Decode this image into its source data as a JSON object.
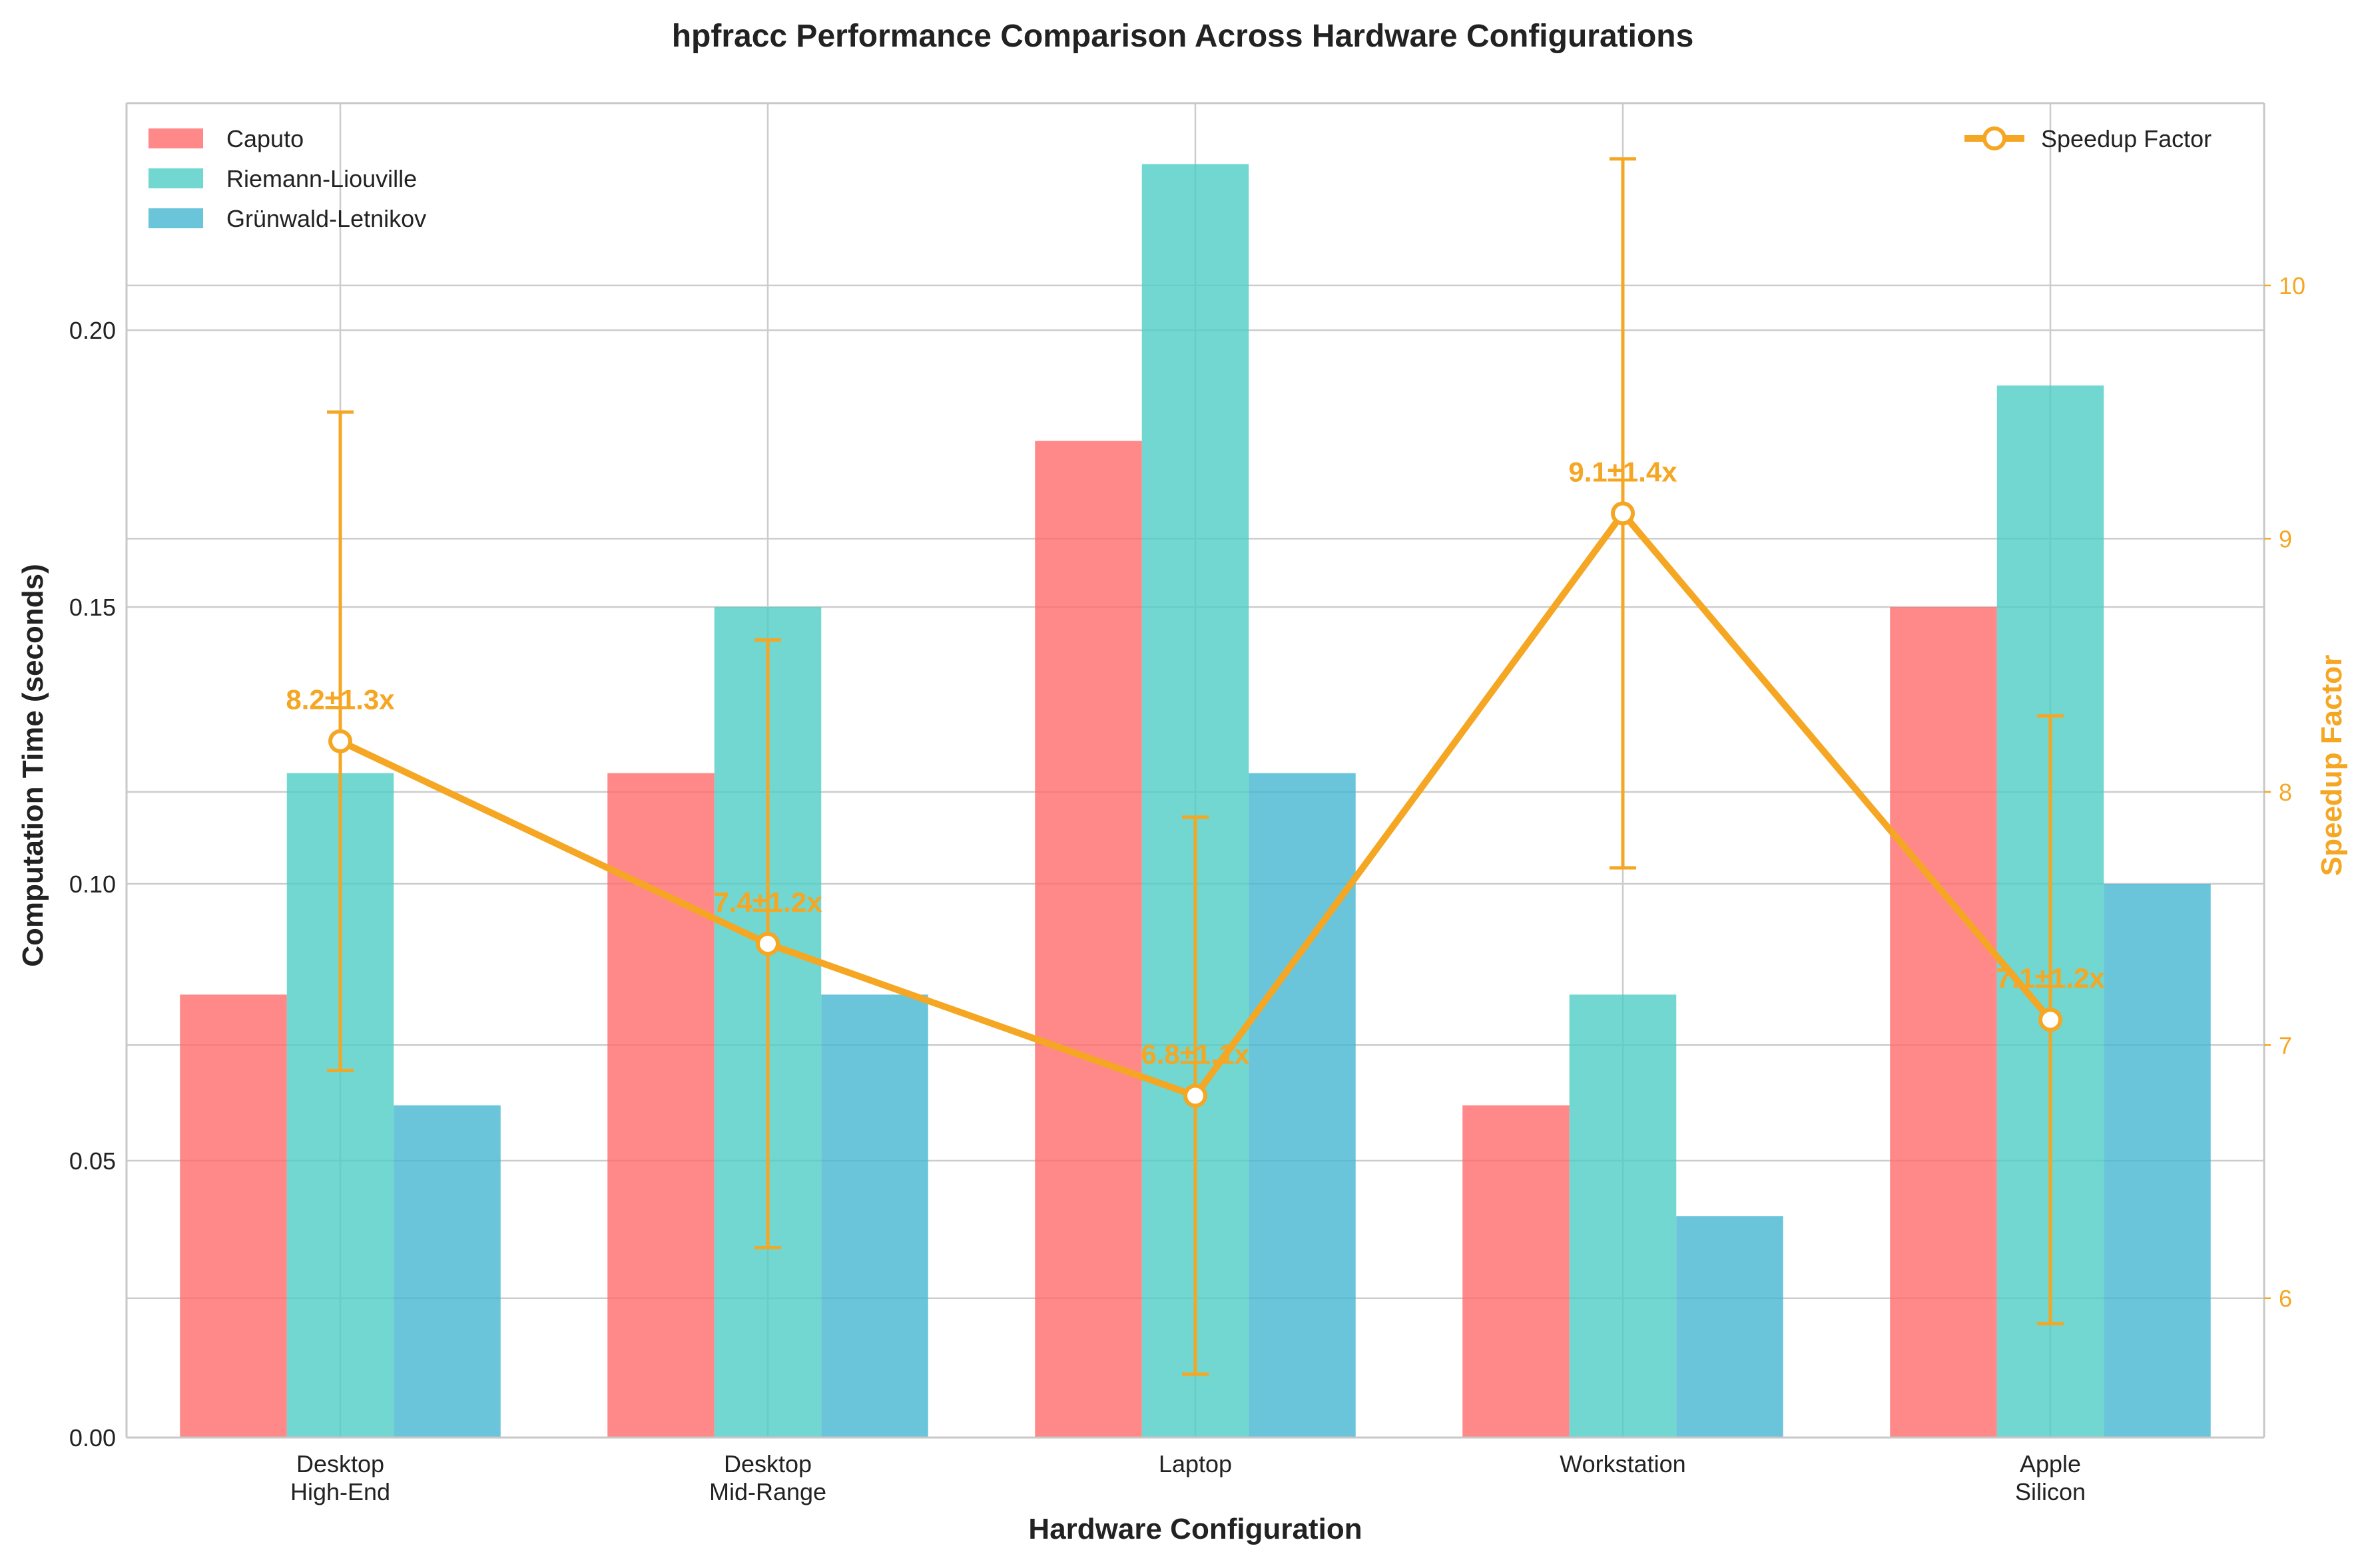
{
  "chart_data": {
    "type": "bar",
    "title": "hpfracc Performance Comparison Across Hardware Configurations",
    "xlabel": "Hardware Configuration",
    "ylabel": "Computation Time (seconds)",
    "y2label": "Speedup Factor",
    "categories": [
      [
        "Desktop",
        "High-End"
      ],
      [
        "Desktop",
        "Mid-Range"
      ],
      [
        "Laptop"
      ],
      [
        "Workstation"
      ],
      [
        "Apple",
        "Silicon"
      ]
    ],
    "ylim": [
      0,
      0.241
    ],
    "yticks": [
      "0.00",
      "0.05",
      "0.10",
      "0.15",
      "0.20"
    ],
    "y2lim": [
      5.45,
      10.72
    ],
    "y2ticks": [
      "6",
      "7",
      "8",
      "9",
      "10"
    ],
    "grid": true,
    "series": [
      {
        "name": "Caputo",
        "color": "#ff6b6b",
        "values": [
          0.08,
          0.12,
          0.18,
          0.06,
          0.15
        ]
      },
      {
        "name": "Riemann-Liouville",
        "color": "#4ecdc4",
        "values": [
          0.12,
          0.15,
          0.23,
          0.08,
          0.19
        ]
      },
      {
        "name": "Grünwald-Letnikov",
        "color": "#45b7d1",
        "values": [
          0.06,
          0.08,
          0.12,
          0.04,
          0.1
        ]
      }
    ],
    "line_series": {
      "name": "Speedup Factor",
      "color": "#f5a623",
      "axis": "right",
      "values": [
        8.2,
        7.4,
        6.8,
        9.1,
        7.1
      ],
      "errors": [
        1.3,
        1.2,
        1.1,
        1.4,
        1.2
      ],
      "labels": [
        "8.2±1.3x",
        "7.4±1.2x",
        "6.8±1.1x",
        "9.1±1.4x",
        "7.1±1.2x"
      ]
    },
    "legend": {
      "bars": "top-left",
      "line": "top-right"
    }
  }
}
